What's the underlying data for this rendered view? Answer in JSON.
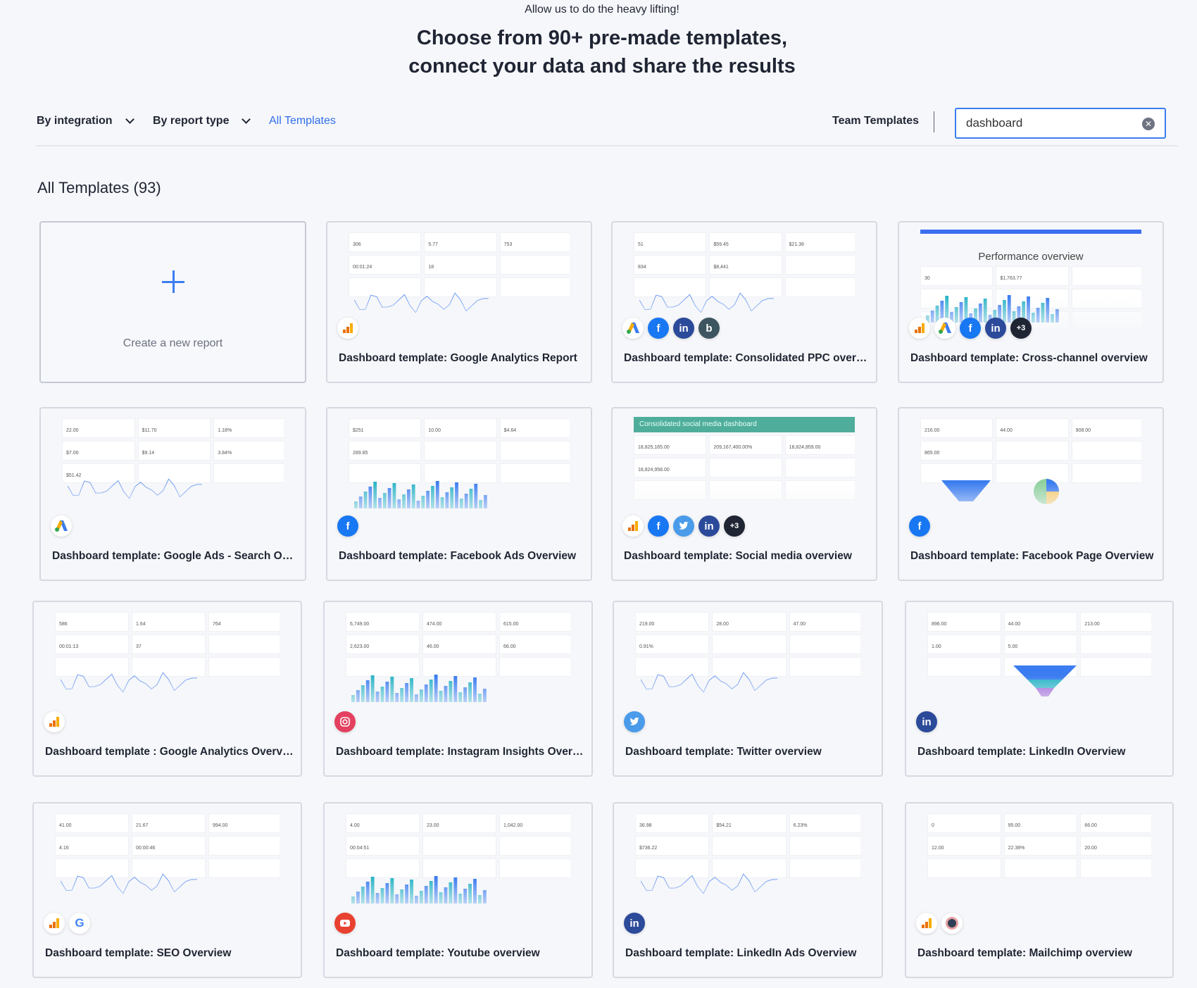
{
  "header": {
    "subtitle": "Allow us to do the heavy lifting!",
    "title_line1": "Choose from 90+ pre-made templates,",
    "title_line2": "connect your data and share the results"
  },
  "filters": {
    "by_integration": "By integration",
    "by_report_type": "By report type",
    "all_templates": "All Templates",
    "team_templates": "Team Templates"
  },
  "search": {
    "value": "dashboard",
    "clear_icon": "clear-circle-icon"
  },
  "section": {
    "title": "All Templates (93)"
  },
  "create": {
    "label": "Create a new report"
  },
  "colors": {
    "accent": "#3b7df0",
    "text": "#1f2533",
    "background": "#f6f7fb"
  },
  "templates": [
    {
      "title": "Dashboard template: Google Analytics Report",
      "icons": [
        "google-analytics"
      ],
      "preview": {
        "chart": "line",
        "values": [
          "306",
          "5.77",
          "753",
          "00:01:24",
          "18"
        ]
      }
    },
    {
      "title": "Dashboard template: Consolidated PPC overvi...",
      "icons": [
        "google-ads",
        "facebook",
        "linkedin",
        "bing"
      ],
      "preview": {
        "chart": "line",
        "values": [
          "51",
          "$59.45",
          "$21.36",
          "834",
          "$8,441"
        ]
      }
    },
    {
      "title": "Dashboard template: Cross-channel overview",
      "icons": [
        "google-analytics",
        "google-ads",
        "facebook",
        "linkedin",
        "+3"
      ],
      "preview": {
        "chart": "bars",
        "heading": "Performance overview",
        "values": [
          "30",
          "$1,763.77"
        ]
      }
    },
    {
      "title": "Dashboard template: Google Ads - Search Over...",
      "icons": [
        "google-ads"
      ],
      "preview": {
        "chart": "line",
        "values": [
          "22.00",
          "$11.70",
          "1.18%",
          "$7.00",
          "$9.14",
          "3.84%",
          "$51.42"
        ]
      }
    },
    {
      "title": "Dashboard template: Facebook Ads Overview",
      "icons": [
        "facebook"
      ],
      "preview": {
        "chart": "bars",
        "values": [
          "$251",
          "10.00",
          "$4.64",
          "289.85"
        ]
      }
    },
    {
      "title": "Dashboard template: Social media overview",
      "icons": [
        "google-analytics",
        "facebook",
        "twitter",
        "linkedin",
        "+3"
      ],
      "preview": {
        "chart": "none",
        "banner": "Consolidated social media dashboard",
        "values": [
          "18,825,165.00",
          "209,167,400.00%",
          "18,824,859.00",
          "18,824,958.00"
        ]
      }
    },
    {
      "title": "Dashboard template: Facebook Page Overview",
      "icons": [
        "facebook"
      ],
      "preview": {
        "chart": "pie",
        "values": [
          "216.00",
          "44.00",
          "908.00",
          "865.00"
        ]
      }
    },
    {
      "title": "Dashboard template : Google Analytics Overview",
      "icons": [
        "google-analytics"
      ],
      "preview": {
        "chart": "line",
        "values": [
          "586",
          "1.64",
          "764",
          "00:01:13",
          "37"
        ]
      }
    },
    {
      "title": "Dashboard template: Instagram Insights Overvi...",
      "icons": [
        "instagram"
      ],
      "preview": {
        "chart": "bars",
        "values": [
          "6,749.00",
          "474.00",
          "615.00",
          "2,623.00",
          "46.00",
          "66.00"
        ]
      }
    },
    {
      "title": "Dashboard template: Twitter overview",
      "icons": [
        "twitter"
      ],
      "preview": {
        "chart": "line",
        "values": [
          "219.00",
          "28.00",
          "47.00",
          "0.91%"
        ]
      }
    },
    {
      "title": "Dashboard template: LinkedIn Overview",
      "icons": [
        "linkedin"
      ],
      "preview": {
        "chart": "funnel",
        "values": [
          "896.00",
          "44.00",
          "213.00",
          "1.00",
          "5.00"
        ]
      }
    },
    {
      "title": "Dashboard template: SEO Overview",
      "icons": [
        "google-analytics",
        "google"
      ],
      "preview": {
        "chart": "line",
        "values": [
          "41.00",
          "21.67",
          "994.00",
          "4.16",
          "00:00:46"
        ]
      }
    },
    {
      "title": "Dashboard template: Youtube overview",
      "icons": [
        "youtube"
      ],
      "preview": {
        "chart": "bars",
        "values": [
          "4.00",
          "23.00",
          "1,042.00",
          "00:04:51"
        ]
      }
    },
    {
      "title": "Dashboard template: LinkedIn Ads Overview",
      "icons": [
        "linkedin"
      ],
      "preview": {
        "chart": "line",
        "values": [
          "36.98",
          "$54.21",
          "6.23%",
          "$736.22"
        ]
      }
    },
    {
      "title": "Dashboard template: Mailchimp overview",
      "icons": [
        "google-analytics",
        "mailchimp"
      ],
      "preview": {
        "chart": "none",
        "values": [
          "0",
          "95.00",
          "66.00",
          "12.00",
          "22.38%",
          "20.00"
        ]
      }
    }
  ]
}
